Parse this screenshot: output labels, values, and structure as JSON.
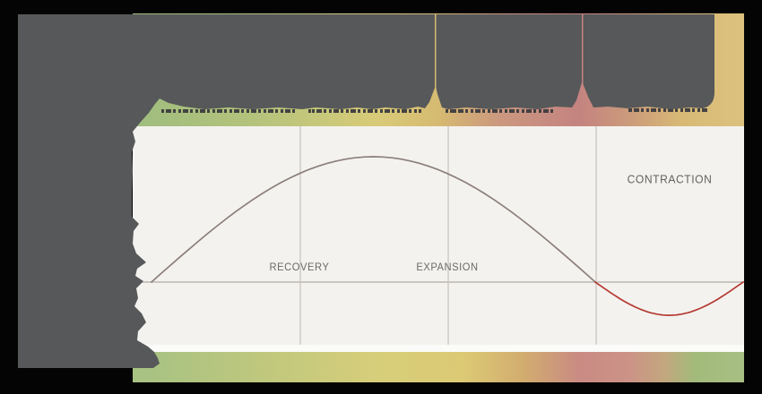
{
  "scene": {
    "background": "#040404",
    "overlay": {
      "name": "dark-redaction-blob",
      "color": "#57585a"
    },
    "remnant_text_color": "#3c3c40",
    "chart_background": "#f4f2ef",
    "baseline_color": "#c9c6c2",
    "gridline_color": "#d8d5d1"
  },
  "bands": {
    "top_gradient_stops": [
      [
        "#9fbd7e",
        0
      ],
      [
        "#b4c37c",
        20
      ],
      [
        "#d8cb78",
        40
      ],
      [
        "#d6ba71",
        50
      ],
      [
        "#cb987f",
        60
      ],
      [
        "#c48380",
        73
      ],
      [
        "#cb9a7b",
        81
      ],
      [
        "#d8ba75",
        90
      ],
      [
        "#dcc17e",
        100
      ]
    ],
    "bottom_gradient_stops": [
      [
        "#a7c283",
        2
      ],
      [
        "#c0c87d",
        22
      ],
      [
        "#d7ce7a",
        40
      ],
      [
        "#dcca74",
        54
      ],
      [
        "#d2ac6f",
        64
      ],
      [
        "#c98b83",
        73
      ],
      [
        "#cc9287",
        81
      ],
      [
        "#c3a77e",
        87
      ],
      [
        "#a2bb7b",
        92
      ],
      [
        "#a8bf83",
        100
      ]
    ]
  },
  "chart_data": {
    "type": "line",
    "title": "",
    "description": "Stylized business-cycle wave over four equal phase sections; left column and header band are covered by a dark irregular overlay",
    "x_range": [
      0,
      4
    ],
    "y_range": [
      -0.5,
      1.24
    ],
    "baseline_y": 0,
    "gridlines_x": [
      1,
      2,
      3
    ],
    "grid": "vertical-only",
    "legend": "none",
    "xlabel": "",
    "ylabel": "",
    "series": [
      {
        "name": "cycle-curve",
        "segments": [
          {
            "shape": "half-sine",
            "x_start": 0,
            "x_end": 3,
            "amplitude": 1.0,
            "color": "#8b7f7c"
          },
          {
            "shape": "half-sine",
            "x_start": 3,
            "x_end": 4,
            "amplitude": -0.265,
            "color": "#b43a31"
          }
        ],
        "key_points": [
          {
            "x": 0,
            "y": 0,
            "note": "curve emerges from overlay at baseline"
          },
          {
            "x": 1.5,
            "y": 1.0,
            "note": "peak"
          },
          {
            "x": 3,
            "y": 0,
            "note": "baseline crossing, color turns red"
          },
          {
            "x": 3.5,
            "y": -0.265,
            "note": "trough"
          },
          {
            "x": 4,
            "y": 0,
            "note": "returns to baseline at right edge"
          }
        ]
      }
    ],
    "annotations": [
      {
        "text": "RECOVERY",
        "x": 1.0,
        "y": 0.12
      },
      {
        "text": "EXPANSION",
        "x": 2.0,
        "y": 0.12
      },
      {
        "text": "CONTRACTION",
        "x": 3.5,
        "y": 0.82
      }
    ]
  }
}
